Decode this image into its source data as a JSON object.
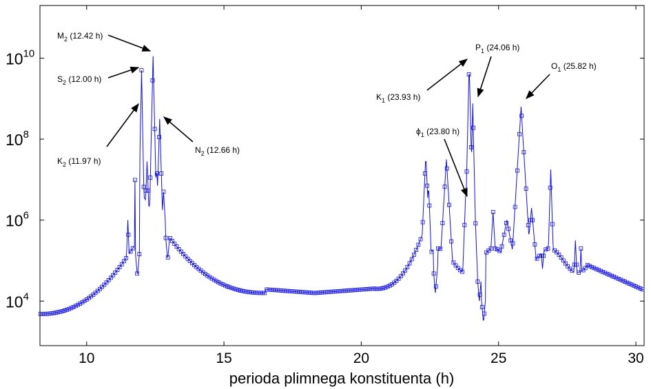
{
  "chart_data": {
    "type": "line",
    "xlabel": "perioda plimnega konstituenta (h)",
    "ylabel": "",
    "title": "",
    "xlim": [
      8.3,
      30.3
    ],
    "ylim_log10": [
      2.9,
      11.3
    ],
    "yscale": "log",
    "grid": false,
    "series_color": "#1010e0",
    "marker": "square",
    "x_ticks": [
      "10",
      "15",
      "20",
      "25",
      "30"
    ],
    "y_ticks": [
      {
        "base": "10",
        "exp": "4",
        "log10": 4
      },
      {
        "base": "10",
        "exp": "6",
        "log10": 6
      },
      {
        "base": "10",
        "exp": "8",
        "log10": 8
      },
      {
        "base": "10",
        "exp": "10",
        "log10": 10
      }
    ],
    "peaks": [
      {
        "name": "M",
        "sub": "2",
        "period": "(12.42 h)",
        "x": 12.42,
        "log10y": 10.05
      },
      {
        "name": "S",
        "sub": "2",
        "period": "(12.00 h)",
        "x": 12.0,
        "log10y": 9.7
      },
      {
        "name": "K",
        "sub": "2",
        "period": "(11.97 h)",
        "x": 11.97,
        "log10y": 8.85
      },
      {
        "name": "N",
        "sub": "2",
        "period": "(12.66 h)",
        "x": 12.66,
        "log10y": 8.5
      },
      {
        "name": "P",
        "sub": "1",
        "period": "(24.06 h)",
        "x": 24.06,
        "log10y": 8.88
      },
      {
        "name": "K",
        "sub": "1",
        "period": "(23.93 h)",
        "x": 23.93,
        "log10y": 9.9
      },
      {
        "name": "O",
        "sub": "1",
        "period": "(25.82 h)",
        "x": 25.82,
        "log10y": 8.8
      },
      {
        "name": "ϕ",
        "sub": "1",
        "period": "(23.80 h)",
        "x": 23.8,
        "log10y": 6.6
      }
    ]
  }
}
